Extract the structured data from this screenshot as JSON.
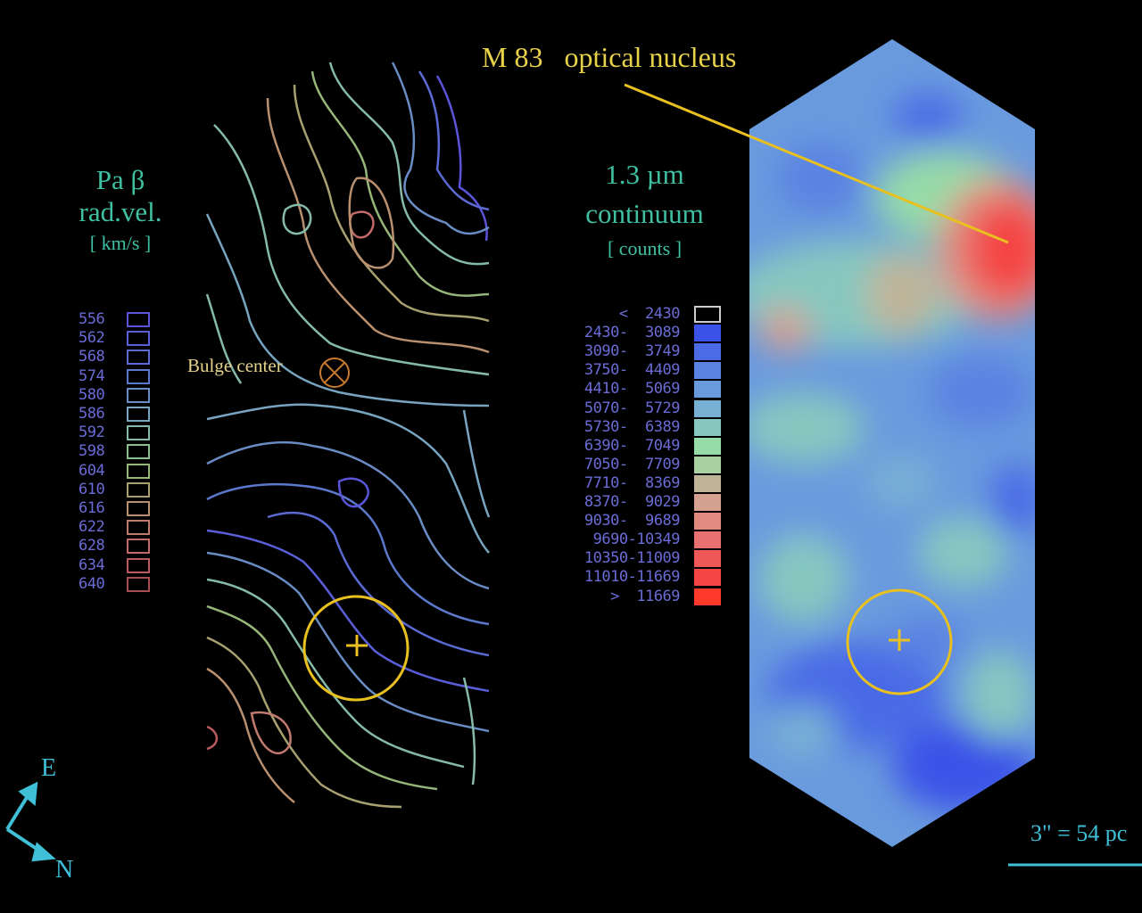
{
  "nucleus_label": "M 83   optical nucleus",
  "velocity_legend": {
    "title_line1": "Pa β",
    "title_line2": "rad.vel.",
    "unit": "[ km/s ]",
    "levels": [
      "556",
      "562",
      "568",
      "574",
      "580",
      "586",
      "592",
      "598",
      "604",
      "610",
      "616",
      "622",
      "628",
      "634",
      "640"
    ],
    "colors": [
      "#5a54d8",
      "#5a5ed8",
      "#5a6ad2",
      "#5c78cc",
      "#6a8cc4",
      "#78a4c0",
      "#86baa8",
      "#8cbe90",
      "#96b67a",
      "#a8a070",
      "#b89070",
      "#c07a6e",
      "#c06a6c",
      "#b85a60",
      "#a84e52"
    ]
  },
  "bulge_label": "Bulge center",
  "continuum_legend": {
    "title_line1": "1.3 µm",
    "title_line2": "continuum",
    "unit": "[ counts ]",
    "ranges": [
      "<  2430",
      "2430-  3089",
      "3090-  3749",
      "3750-  4409",
      "4410-  5069",
      "5070-  5729",
      "5730-  6389",
      "6390-  7049",
      "7050-  7709",
      "7710-  8369",
      "8370-  9029",
      "9030-  9689",
      "9690-10349",
      "10350-11009",
      "11010-11669",
      ">  11669"
    ],
    "colors": [
      "#000000",
      "#3a52e8",
      "#4a6ae6",
      "#5a82e2",
      "#6a9ade",
      "#78b0d4",
      "#86c8c0",
      "#96dca8",
      "#a8d0a0",
      "#c0b498",
      "#d4a090",
      "#e08a80",
      "#e87070",
      "#f05858",
      "#f44444",
      "#ff3a2a"
    ]
  },
  "compass": {
    "north": "N",
    "east": "E"
  },
  "scale_bar": "3\" = 54 pc",
  "colors": {
    "teal": "#3fc0a2",
    "yellow": "#e8d24a"
  }
}
